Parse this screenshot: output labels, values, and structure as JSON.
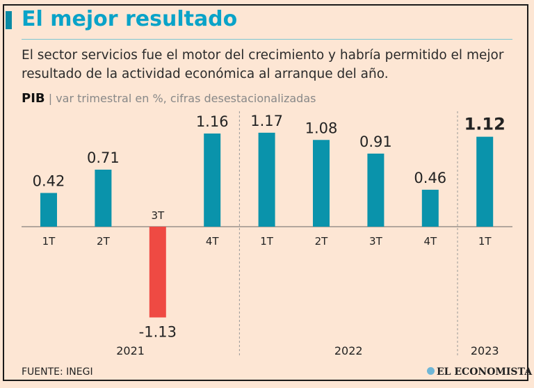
{
  "title": "El mejor resultado",
  "subtitle": "El sector servicios fue el motor del crecimiento y habría permitido el mejor resultado de la actividad económica al arranque del año.",
  "unit_bold": "PIB",
  "unit_sep": "|",
  "unit_text": "var trimestral en %, cifras desestacionalizadas",
  "source": "FUENTE: INEGI",
  "logo": "EL ECONOMISTA",
  "colors": {
    "positive": "#0a93ab",
    "negative": "#ef4a43",
    "title": "#0aa3c8"
  },
  "chart_data": {
    "type": "bar",
    "title": "El mejor resultado",
    "ylabel": "var trimestral en %",
    "categories": [
      "1T",
      "2T",
      "3T",
      "4T",
      "1T",
      "2T",
      "3T",
      "4T",
      "1T"
    ],
    "years": [
      {
        "label": "2021",
        "span": 4
      },
      {
        "label": "2022",
        "span": 4
      },
      {
        "label": "2023",
        "span": 1
      }
    ],
    "values": [
      0.42,
      0.71,
      -1.13,
      1.16,
      1.17,
      1.08,
      0.91,
      0.46,
      1.12
    ],
    "labels": [
      "0.42",
      "0.71",
      "-1.13",
      "1.16",
      "1.17",
      "1.08",
      "0.91",
      "0.46",
      "1.12"
    ],
    "highlight_index": 8,
    "grid": false
  }
}
